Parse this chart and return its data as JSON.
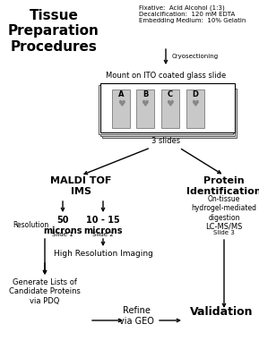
{
  "bg_color": "#ffffff",
  "title_left": "Tissue\nPreparation\nProcedures",
  "fixative_text": "Fixative:  Acid Alcohol (1:3)\nDecalcification:  120 mM EDTA\nEmbedding Medium:  10% Gelatin",
  "cryo_label": "Cryosectioning",
  "mount_label": "Mount on ITO coated glass slide",
  "slides_label": "3 slides",
  "slide_letters": [
    "A",
    "B",
    "C",
    "D"
  ],
  "maldi_label": "MALDI TOF\nIMS",
  "protein_id_label": "Protein\nIdentification",
  "resolution_label": "Resolution",
  "res1_label": "50\nmicrons",
  "res1_slide": "Slide 1",
  "res2_label": "10 - 15\nmicrons",
  "res2_slide": "Slide 2",
  "protein_detail1": "On-tissue\nhydrogel-mediated\ndigestion",
  "protein_detail2": "LC-MS/MS",
  "protein_slide": "Slide 3",
  "high_res_label": "High Resolution Imaging",
  "candidate_label": "Generate Lists of\nCandidate Proteins\nvia PDQ",
  "refine_label": "Refine\nvia GEO",
  "validation_label": "Validation"
}
